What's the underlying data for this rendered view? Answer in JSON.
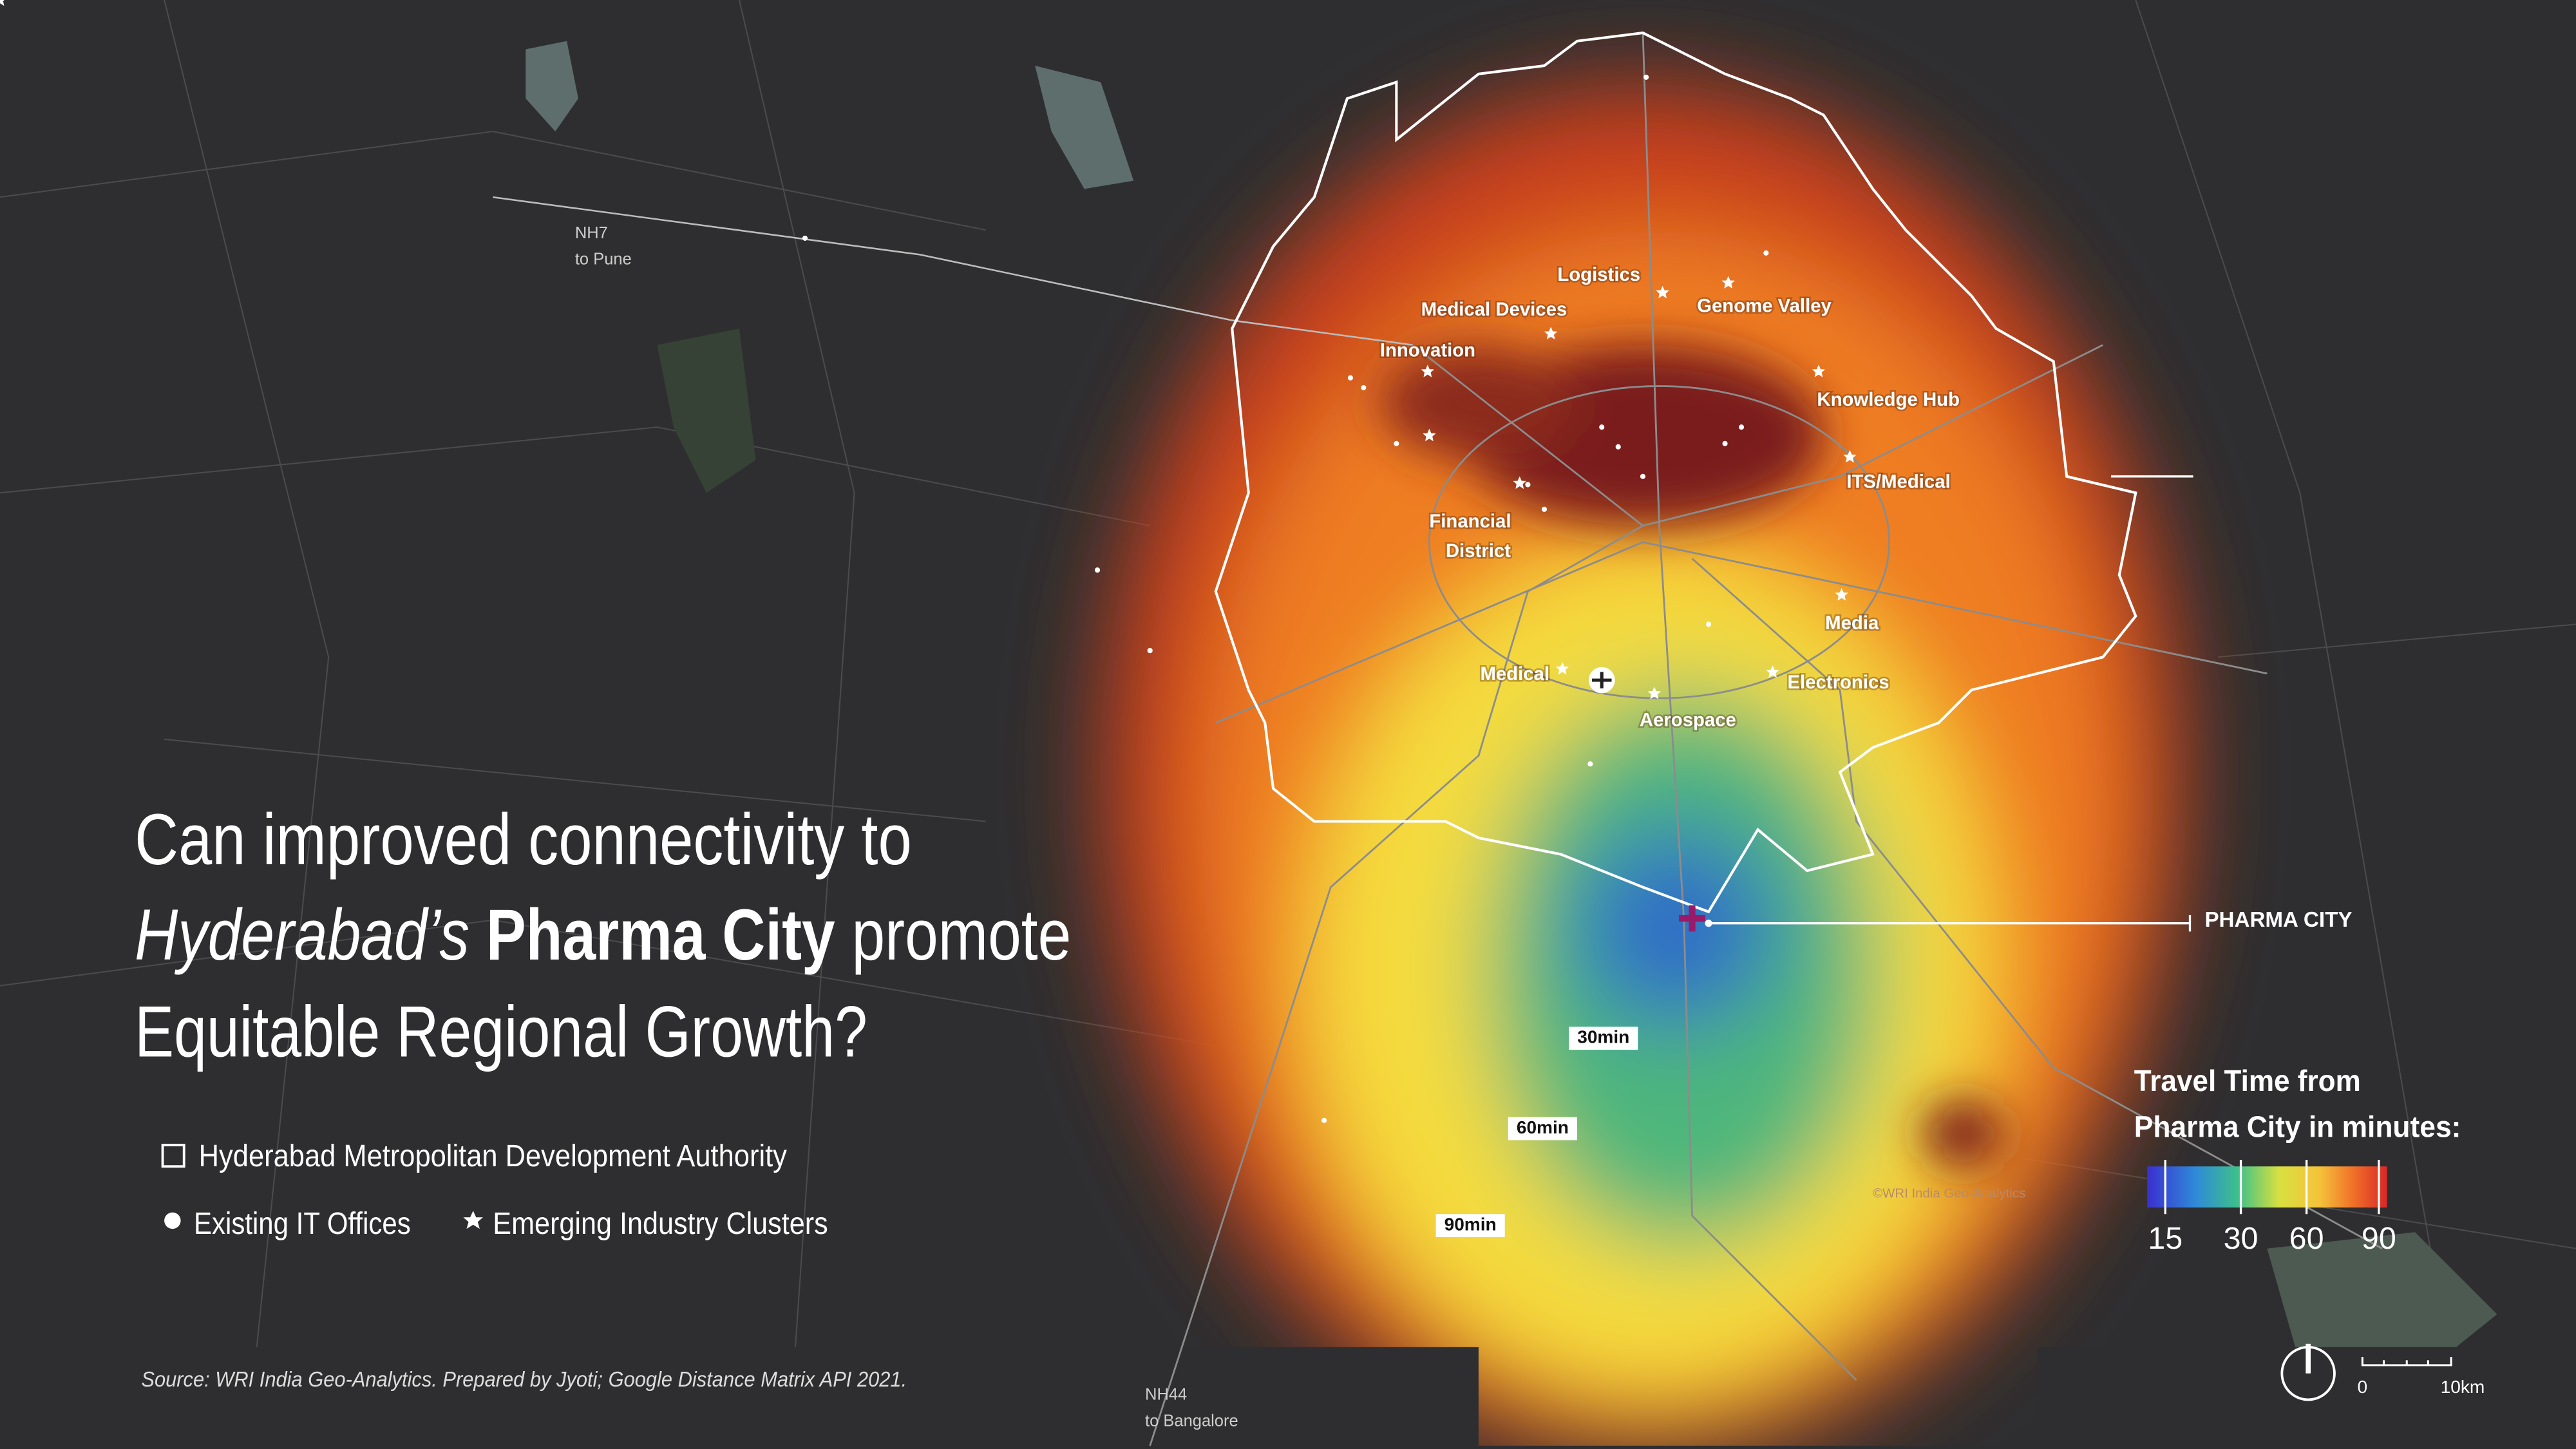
{
  "title": {
    "line1": "Can improved connectivity to",
    "line2": {
      "italic": "Hyderabad’s",
      "bold": "Pharma City",
      "rest": "promote"
    },
    "line3": "Equitable Regional Growth?"
  },
  "legend": {
    "boundary": "Hyderabad Metropolitan Development Authority",
    "offices": "Existing IT Offices",
    "clusters": "Emerging Industry Clusters"
  },
  "map_labels": {
    "clusters": [
      "Logistics",
      "Medical Devices",
      "Genome Valley",
      "Innovation",
      "Knowledge Hub",
      "ITS/Medical",
      [
        "Financial",
        "District"
      ],
      "Media",
      "Medical",
      "Electronics",
      "Aerospace"
    ],
    "travel_time": [
      "30min",
      "60min",
      "90min"
    ],
    "destination": "PHARMA CITY",
    "roads": [
      {
        "name": "NH7",
        "to": "to Pune"
      },
      {
        "name": "NH44",
        "to": "to Bangalore"
      }
    ]
  },
  "colorbar": {
    "title": [
      "Travel Time from",
      "Pharma City in minutes:"
    ],
    "ticks": [
      15,
      30,
      60,
      90
    ]
  },
  "scale_bar": {
    "start": 0,
    "end": "10km"
  },
  "credit": "©WRI India Geo-Analytics",
  "source": "Source: WRI India Geo-Analytics. Prepared by Jyoti; Google Distance Matrix API 2021."
}
